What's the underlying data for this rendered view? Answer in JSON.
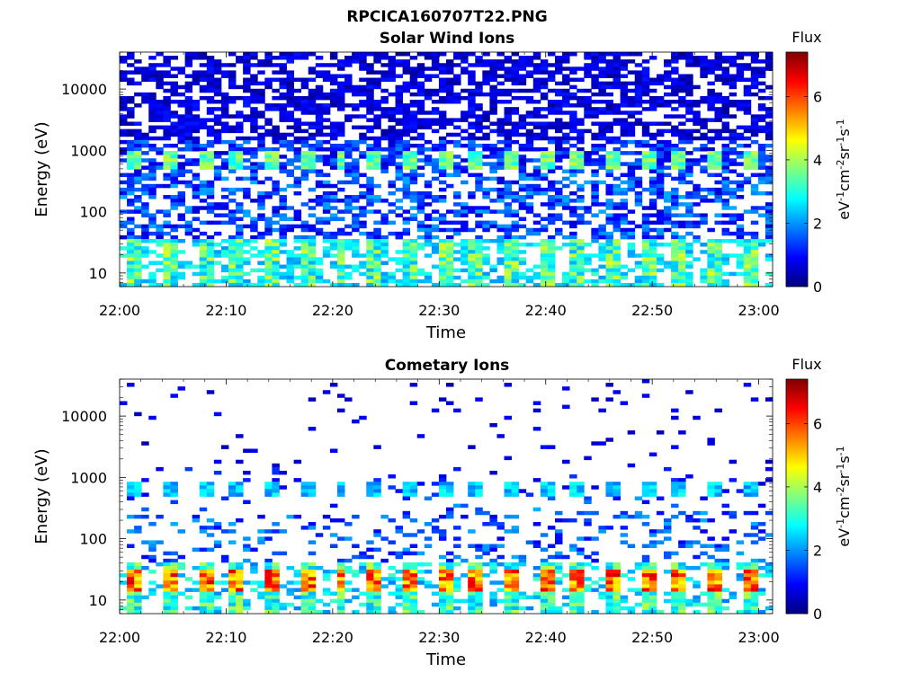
{
  "figure": {
    "title": "RPCICA160707T22.PNG"
  },
  "chart_data": [
    {
      "type": "heatmap",
      "title": "Solar Wind Ions",
      "xlabel": "Time",
      "ylabel": "Energy (eV)",
      "x_ticks": [
        "22:00",
        "22:10",
        "22:20",
        "22:30",
        "22:40",
        "22:50",
        "23:00"
      ],
      "x_range": [
        "22:00",
        "23:01"
      ],
      "y_scale": "log",
      "y_ticks": [
        10,
        100,
        1000,
        10000
      ],
      "y_tick_labels": [
        "10",
        "100",
        "1000",
        "10000"
      ],
      "y_range_eV": [
        6,
        40000
      ],
      "colorbar": {
        "label_top": "Flux",
        "label_side": "eV-1cm-2sr-1s-1",
        "ticks": [
          0,
          2,
          4,
          6
        ],
        "range": [
          0,
          7.4
        ],
        "colormap": "jet"
      },
      "features": [
        {
          "energy_eV": 750,
          "flux_approx": 3.5,
          "period_min": 3.2
        },
        {
          "energy_eV": 20,
          "flux_approx": 3.5,
          "period_min": 3.2
        },
        {
          "energy_range_eV": [
            100,
            40000
          ],
          "flux_approx": 0.5
        }
      ]
    },
    {
      "type": "heatmap",
      "title": "Cometary Ions",
      "xlabel": "Time",
      "ylabel": "Energy (eV)",
      "x_ticks": [
        "22:00",
        "22:10",
        "22:20",
        "22:30",
        "22:40",
        "22:50",
        "23:00"
      ],
      "x_range": [
        "22:00",
        "23:01"
      ],
      "y_scale": "log",
      "y_ticks": [
        10,
        100,
        1000,
        10000
      ],
      "y_tick_labels": [
        "10",
        "100",
        "1000",
        "10000"
      ],
      "y_range_eV": [
        6,
        40000
      ],
      "colorbar": {
        "label_top": "Flux",
        "label_side": "eV-1cm-2sr-1s-1",
        "ticks": [
          0,
          2,
          4,
          6
        ],
        "range": [
          0,
          7.4
        ],
        "colormap": "jet"
      },
      "features": [
        {
          "energy_eV": 750,
          "flux_approx": 2.5,
          "period_min": 3.2
        },
        {
          "energy_eV": 20,
          "flux_approx": 6,
          "period_min": 3.2
        },
        {
          "energy_range_eV": [
            60,
            300
          ],
          "flux_approx": 1
        }
      ]
    }
  ]
}
